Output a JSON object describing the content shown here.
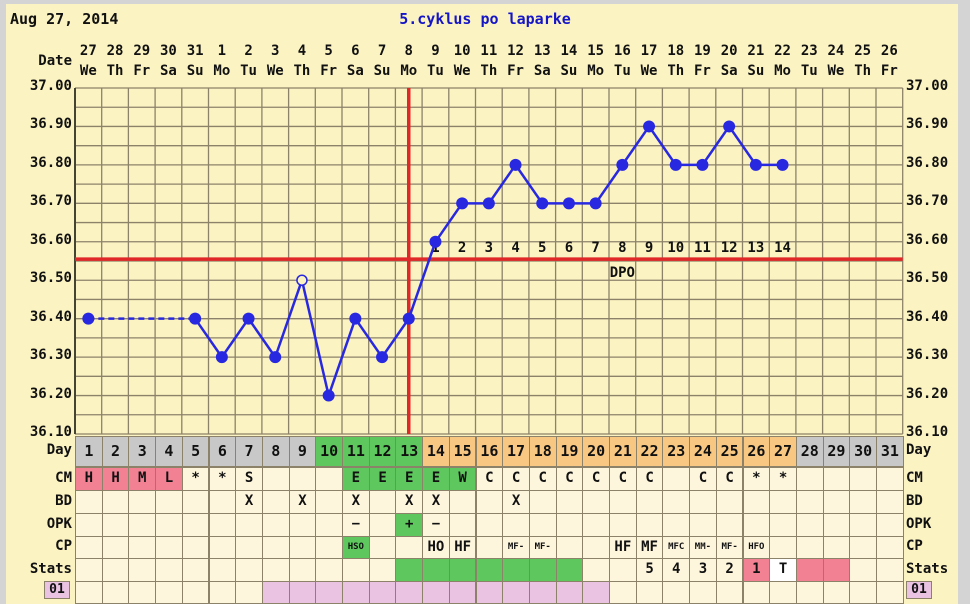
{
  "header": {
    "date_label": "Aug 27, 2014",
    "title": "5.cyklus po laparke"
  },
  "row_labels": {
    "date": "Date",
    "day": "Day",
    "cm": "CM",
    "bd": "BD",
    "opk": "OPK",
    "cp": "CP",
    "stats": "Stats",
    "bottom": "01"
  },
  "colors": {
    "day_gray": "#c8c8c8",
    "green": "#5ec85e",
    "orange": "#f8c883",
    "pink": "#f28194",
    "light_pink": "#eac3e3",
    "white": "#ffffff",
    "temp_line": "#2828e0",
    "red_line": "#e02828",
    "background": "#fbf3c2",
    "cell": "#fdf5dc"
  },
  "chart_data": {
    "type": "line",
    "dates": [
      {
        "d": "27",
        "w": "We"
      },
      {
        "d": "28",
        "w": "Th"
      },
      {
        "d": "29",
        "w": "Fr"
      },
      {
        "d": "30",
        "w": "Sa"
      },
      {
        "d": "31",
        "w": "Su"
      },
      {
        "d": "1",
        "w": "Mo"
      },
      {
        "d": "2",
        "w": "Tu"
      },
      {
        "d": "3",
        "w": "We"
      },
      {
        "d": "4",
        "w": "Th"
      },
      {
        "d": "5",
        "w": "Fr"
      },
      {
        "d": "6",
        "w": "Sa"
      },
      {
        "d": "7",
        "w": "Su"
      },
      {
        "d": "8",
        "w": "Mo"
      },
      {
        "d": "9",
        "w": "Tu"
      },
      {
        "d": "10",
        "w": "We"
      },
      {
        "d": "11",
        "w": "Th"
      },
      {
        "d": "12",
        "w": "Fr"
      },
      {
        "d": "13",
        "w": "Sa"
      },
      {
        "d": "14",
        "w": "Su"
      },
      {
        "d": "15",
        "w": "Mo"
      },
      {
        "d": "16",
        "w": "Tu"
      },
      {
        "d": "17",
        "w": "We"
      },
      {
        "d": "18",
        "w": "Th"
      },
      {
        "d": "19",
        "w": "Fr"
      },
      {
        "d": "20",
        "w": "Sa"
      },
      {
        "d": "21",
        "w": "Su"
      },
      {
        "d": "22",
        "w": "Mo"
      },
      {
        "d": "23",
        "w": "Tu"
      },
      {
        "d": "24",
        "w": "We"
      },
      {
        "d": "25",
        "w": "Th"
      },
      {
        "d": "26",
        "w": "Fr"
      }
    ],
    "cycle_days": [
      "1",
      "2",
      "3",
      "4",
      "5",
      "6",
      "7",
      "8",
      "9",
      "10",
      "11",
      "12",
      "13",
      "14",
      "15",
      "16",
      "17",
      "18",
      "19",
      "20",
      "21",
      "22",
      "23",
      "24",
      "25",
      "26",
      "27",
      "28",
      "29",
      "30",
      "31"
    ],
    "temperatures": [
      36.4,
      null,
      null,
      null,
      36.4,
      36.3,
      36.4,
      36.3,
      36.5,
      36.2,
      36.4,
      36.3,
      36.4,
      36.6,
      36.7,
      36.7,
      36.8,
      36.7,
      36.7,
      36.7,
      36.8,
      36.9,
      36.8,
      36.8,
      36.9,
      36.8,
      36.8,
      null,
      null,
      null,
      null
    ],
    "open_circle_days": [
      9
    ],
    "dotted_gap": [
      1,
      5
    ],
    "ylim": [
      36.1,
      37.0
    ],
    "y_ticks": [
      "37.00",
      "36.90",
      "36.80",
      "36.70",
      "36.60",
      "36.50",
      "36.40",
      "36.30",
      "36.20",
      "36.10"
    ],
    "coverline": 36.555,
    "ovulation_day": 13,
    "dpo_labels": [
      "1",
      "2",
      "3",
      "4",
      "5",
      "6",
      "7",
      "8",
      "9",
      "10",
      "11",
      "12",
      "13",
      "14"
    ],
    "dpo_title": "DPO",
    "grid": true
  },
  "rows": {
    "day_colors": [
      "gray",
      "gray",
      "gray",
      "gray",
      "gray",
      "gray",
      "gray",
      "gray",
      "gray",
      "green",
      "green",
      "green",
      "green",
      "orange",
      "orange",
      "orange",
      "orange",
      "orange",
      "orange",
      "orange",
      "orange",
      "orange",
      "orange",
      "orange",
      "orange",
      "orange",
      "orange",
      "gray",
      "gray",
      "gray",
      "gray"
    ],
    "cm": [
      "H",
      "H",
      "M",
      "L",
      "*",
      "*",
      "S",
      "",
      "",
      "",
      "E",
      "E",
      "E",
      "E",
      "W",
      "C",
      "C",
      "C",
      "C",
      "C",
      "C",
      "C",
      "",
      "C",
      "C",
      "*",
      "*",
      "",
      "",
      "",
      ""
    ],
    "cm_colors": {
      "1": "pink",
      "2": "pink",
      "3": "pink",
      "4": "pink",
      "11": "green",
      "12": "green",
      "13": "green",
      "14": "green",
      "15": "green"
    },
    "bd": [
      "",
      "",
      "",
      "",
      "",
      "",
      "X",
      "",
      "X",
      "",
      "X",
      "",
      "X",
      "X",
      "",
      "",
      "X",
      "",
      "",
      "",
      "",
      "",
      "",
      "",
      "",
      "",
      "",
      "",
      "",
      "",
      ""
    ],
    "opk": [
      "",
      "",
      "",
      "",
      "",
      "",
      "",
      "",
      "",
      "",
      "−",
      "",
      "+",
      "−",
      "",
      "",
      "",
      "",
      "",
      "",
      "",
      "",
      "",
      "",
      "",
      "",
      "",
      "",
      "",
      "",
      ""
    ],
    "opk_colors": {
      "13": "green"
    },
    "cp": [
      "",
      "",
      "",
      "",
      "",
      "",
      "",
      "",
      "",
      "",
      "HSO",
      "",
      "",
      "HO",
      "HF",
      "",
      "MF-",
      "MF-",
      "",
      "",
      "HF",
      "MF",
      "MFC",
      "MM-",
      "MF-",
      "HFO",
      "",
      "",
      "",
      "",
      ""
    ],
    "cp_colors": {
      "11": "green"
    },
    "stats": [
      "",
      "",
      "",
      "",
      "",
      "",
      "",
      "",
      "",
      "",
      "",
      "",
      "",
      "",
      "",
      "",
      "",
      "",
      "",
      "",
      "",
      "5",
      "4",
      "3",
      "2",
      "1",
      "T",
      "",
      "",
      "",
      ""
    ],
    "stats_colors": {
      "13": "green",
      "14": "green",
      "15": "green",
      "16": "green",
      "17": "green",
      "18": "green",
      "19": "green",
      "26": "pink",
      "27": "white",
      "28": "pink",
      "29": "pink"
    },
    "bottom_colors": {
      "8": "light_pink",
      "9": "light_pink",
      "10": "light_pink",
      "11": "light_pink",
      "12": "light_pink",
      "13": "light_pink",
      "14": "light_pink",
      "15": "light_pink",
      "16": "light_pink",
      "17": "light_pink",
      "18": "light_pink",
      "19": "light_pink",
      "20": "light_pink"
    }
  }
}
